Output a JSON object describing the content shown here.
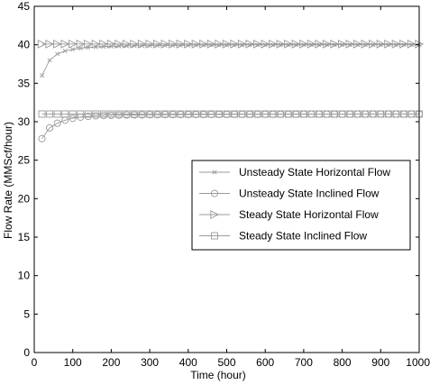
{
  "chart_data": {
    "type": "line",
    "title": "",
    "xlabel": "Time (hour)",
    "ylabel": "Flow Rate (MMScf/hour)",
    "xlim": [
      0,
      1000
    ],
    "ylim": [
      0,
      45
    ],
    "xticks": [
      0,
      100,
      200,
      300,
      400,
      500,
      600,
      700,
      800,
      900,
      1000
    ],
    "yticks": [
      0,
      5,
      10,
      15,
      20,
      25,
      30,
      35,
      40,
      45
    ],
    "grid": false,
    "legend_position": "center-right",
    "line_color": "#9a9a9a",
    "x": [
      20,
      40,
      60,
      80,
      100,
      120,
      140,
      160,
      180,
      200,
      220,
      240,
      260,
      280,
      300,
      320,
      340,
      360,
      380,
      400,
      420,
      440,
      460,
      480,
      500,
      520,
      540,
      560,
      580,
      600,
      620,
      640,
      660,
      680,
      700,
      720,
      740,
      760,
      780,
      800,
      820,
      840,
      860,
      880,
      900,
      920,
      940,
      960,
      980,
      1000
    ],
    "series": [
      {
        "name": "Unsteady State Horizontal Flow",
        "marker": "x",
        "values": [
          36.0,
          38.0,
          38.8,
          39.2,
          39.4,
          39.55,
          39.65,
          39.72,
          39.77,
          39.8,
          39.83,
          39.85,
          39.87,
          39.88,
          39.89,
          39.9,
          39.91,
          39.92,
          39.93,
          39.94,
          39.95,
          39.95,
          39.96,
          39.96,
          39.97,
          39.97,
          39.97,
          39.98,
          39.98,
          39.98,
          39.98,
          39.99,
          39.99,
          39.99,
          39.99,
          39.99,
          40.0,
          40.0,
          40.0,
          40.0,
          40.0,
          40.0,
          40.0,
          40.0,
          40.0,
          40.0,
          40.0,
          40.0,
          40.0,
          40.0
        ]
      },
      {
        "name": "Unsteady State Inclined Flow",
        "marker": "o",
        "values": [
          27.8,
          29.2,
          29.8,
          30.2,
          30.45,
          30.6,
          30.7,
          30.77,
          30.8,
          30.83,
          30.85,
          30.87,
          30.88,
          30.89,
          30.9,
          30.91,
          30.92,
          30.92,
          30.93,
          30.93,
          30.94,
          30.94,
          30.95,
          30.95,
          30.95,
          30.96,
          30.96,
          30.96,
          30.96,
          30.97,
          30.97,
          30.97,
          30.97,
          30.97,
          30.98,
          30.98,
          30.98,
          30.98,
          30.98,
          30.98,
          30.98,
          30.99,
          30.99,
          30.99,
          30.99,
          30.99,
          30.99,
          30.99,
          30.99,
          31.0
        ]
      },
      {
        "name": "Steady State Horizontal Flow",
        "marker": "triangle-right",
        "values": [
          40.1,
          40.1,
          40.1,
          40.1,
          40.1,
          40.1,
          40.1,
          40.1,
          40.1,
          40.1,
          40.1,
          40.1,
          40.1,
          40.1,
          40.1,
          40.1,
          40.1,
          40.1,
          40.1,
          40.1,
          40.1,
          40.1,
          40.1,
          40.1,
          40.1,
          40.1,
          40.1,
          40.1,
          40.1,
          40.1,
          40.1,
          40.1,
          40.1,
          40.1,
          40.1,
          40.1,
          40.1,
          40.1,
          40.1,
          40.1,
          40.1,
          40.1,
          40.1,
          40.1,
          40.1,
          40.1,
          40.1,
          40.1,
          40.1,
          40.1
        ]
      },
      {
        "name": "Steady State Inclined Flow",
        "marker": "square",
        "values": [
          31.0,
          31.0,
          31.0,
          31.0,
          31.0,
          31.0,
          31.0,
          31.0,
          31.0,
          31.0,
          31.0,
          31.0,
          31.0,
          31.0,
          31.0,
          31.0,
          31.0,
          31.0,
          31.0,
          31.0,
          31.0,
          31.0,
          31.0,
          31.0,
          31.0,
          31.0,
          31.0,
          31.0,
          31.0,
          31.0,
          31.0,
          31.0,
          31.0,
          31.0,
          31.0,
          31.0,
          31.0,
          31.0,
          31.0,
          31.0,
          31.0,
          31.0,
          31.0,
          31.0,
          31.0,
          31.0,
          31.0,
          31.0,
          31.0,
          31.0
        ]
      }
    ]
  }
}
